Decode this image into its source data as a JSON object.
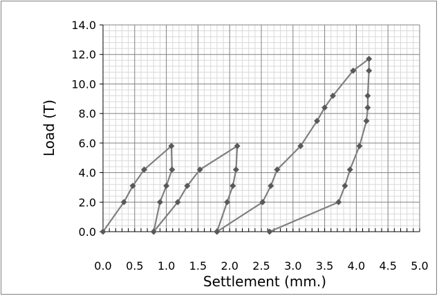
{
  "chart_data": {
    "type": "line",
    "title": "",
    "xlabel": "Settlement (mm.)",
    "ylabel": "Load (T)",
    "xlim": [
      0,
      5
    ],
    "ylim": [
      0,
      14
    ],
    "x_ticks": [
      "0.0",
      "0.5",
      "1.0",
      "1.5",
      "2.0",
      "2.5",
      "3.0",
      "3.5",
      "4.0",
      "4.5",
      "5.0"
    ],
    "y_ticks": [
      "0.0",
      "2.0",
      "4.0",
      "6.0",
      "8.0",
      "10.0",
      "12.0",
      "14.0"
    ],
    "grid": true,
    "legend": "none",
    "line_color": "#7f7f7f",
    "marker_color": "#595959",
    "series": [
      {
        "points": [
          {
            "x": 0.0,
            "y": 0.0
          },
          {
            "x": 0.33,
            "y": 2.0
          },
          {
            "x": 0.47,
            "y": 3.1
          },
          {
            "x": 0.65,
            "y": 4.2
          },
          {
            "x": 1.08,
            "y": 5.8
          },
          {
            "x": 1.09,
            "y": 4.2
          },
          {
            "x": 1.0,
            "y": 3.1
          },
          {
            "x": 0.9,
            "y": 2.0
          },
          {
            "x": 0.8,
            "y": 0.0
          }
        ]
      },
      {
        "points": [
          {
            "x": 0.8,
            "y": 0.0
          },
          {
            "x": 1.18,
            "y": 2.0
          },
          {
            "x": 1.33,
            "y": 3.1
          },
          {
            "x": 1.53,
            "y": 4.2
          },
          {
            "x": 2.12,
            "y": 5.8
          },
          {
            "x": 2.1,
            "y": 4.2
          },
          {
            "x": 2.05,
            "y": 3.1
          },
          {
            "x": 1.96,
            "y": 2.0
          },
          {
            "x": 1.8,
            "y": 0.0
          }
        ]
      },
      {
        "points": [
          {
            "x": 1.8,
            "y": 0.0
          },
          {
            "x": 2.52,
            "y": 2.0
          },
          {
            "x": 2.65,
            "y": 3.1
          },
          {
            "x": 2.75,
            "y": 4.2
          },
          {
            "x": 3.12,
            "y": 5.8
          },
          {
            "x": 3.38,
            "y": 7.5
          },
          {
            "x": 3.5,
            "y": 8.4
          },
          {
            "x": 3.63,
            "y": 9.2
          },
          {
            "x": 3.95,
            "y": 10.9
          },
          {
            "x": 4.2,
            "y": 11.7
          },
          {
            "x": 4.2,
            "y": 10.9
          },
          {
            "x": 4.18,
            "y": 9.2
          },
          {
            "x": 4.18,
            "y": 8.4
          },
          {
            "x": 4.16,
            "y": 7.5
          },
          {
            "x": 4.05,
            "y": 5.8
          },
          {
            "x": 3.9,
            "y": 4.2
          },
          {
            "x": 3.82,
            "y": 3.1
          },
          {
            "x": 3.72,
            "y": 2.0
          },
          {
            "x": 2.63,
            "y": 0.0
          }
        ]
      }
    ]
  }
}
